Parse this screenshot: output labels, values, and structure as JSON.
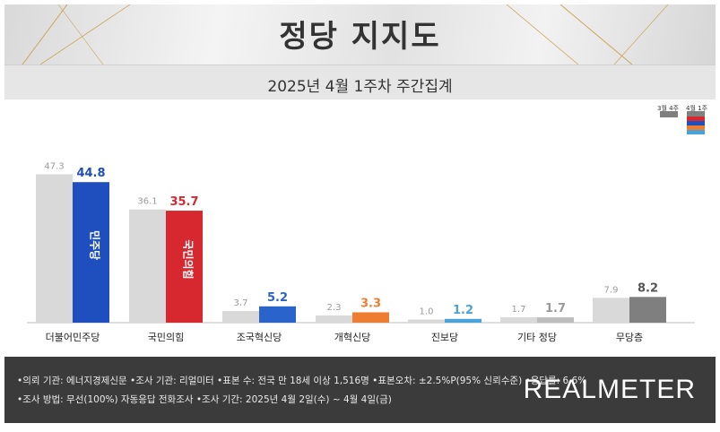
{
  "header": {
    "title": "정당 지지도"
  },
  "subheader": {
    "subtitle": "2025년 4월 1주차 주간집계"
  },
  "legend": {
    "prev_label": "3월 4주",
    "curr_label": "4월 1주"
  },
  "chart_data": {
    "type": "bar",
    "categories": [
      "더불어민주당",
      "국민의힘",
      "조국혁신당",
      "개혁신당",
      "진보당",
      "기타 정당",
      "무당층"
    ],
    "series": [
      {
        "name": "3월 4주",
        "values": [
          47.3,
          36.1,
          3.7,
          2.3,
          1.0,
          1.7,
          7.9
        ]
      },
      {
        "name": "4월 1주",
        "values": [
          44.8,
          35.7,
          5.2,
          3.3,
          1.2,
          1.7,
          8.2
        ]
      }
    ],
    "ylim": [
      0,
      52
    ],
    "grid": false,
    "colors": {
      "prev": "#d9d9d9",
      "curr": [
        "#1f4fbf",
        "#d7282f",
        "#2a63c9",
        "#ee7d31",
        "#4aa3d8",
        "#bdbdbd",
        "#7f7f7f"
      ],
      "curr_label": [
        "#1f4fbf",
        "#d7282f",
        "#2a63c9",
        "#ee7d31",
        "#4aa3d8",
        "#9a9a9a",
        "#555555"
      ]
    },
    "bar_logos": [
      "민주당",
      "국민의힘"
    ]
  },
  "footer": {
    "line1": "•의뢰 기관: 에너지경제신문   •조사 기관: 리얼미터  •표본 수: 전국 만 18세 이상 1,516명  •표본오차: ±2.5%P(95% 신뢰수준)  •응답률: 6.6%",
    "line2": "•조사 방법: 무선(100%) 자동응답 전화조사  •조사 기간: 2025년 4월 2일(수) ~ 4월 4일(금)",
    "brand": "REALMETER"
  }
}
